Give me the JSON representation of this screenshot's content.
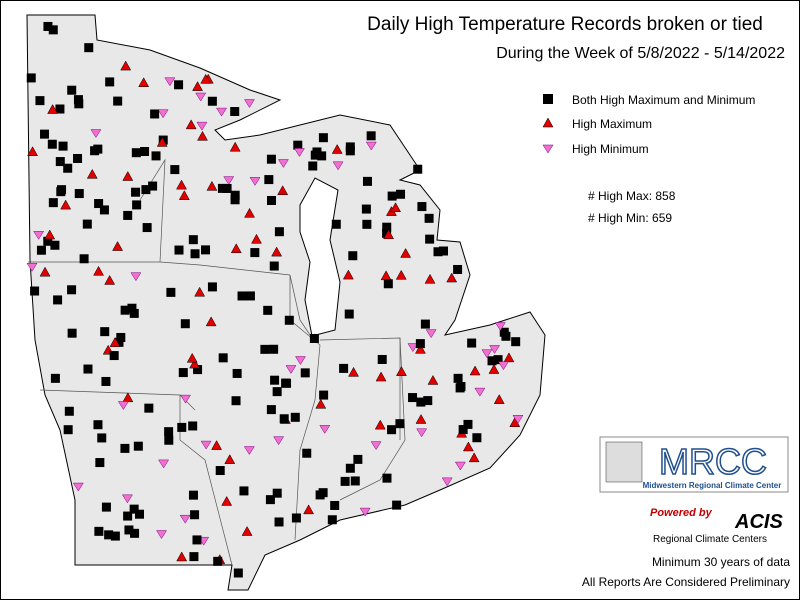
{
  "header": {
    "title": "Daily High Temperature Records broken or tied",
    "subtitle": "During the Week of 5/8/2022 - 5/14/2022"
  },
  "legend": [
    "Both High Maximum and Minimum",
    "High Maximum",
    "High Minimum"
  ],
  "counts": [
    "# High Max: 858",
    "# High Min: 659"
  ],
  "logos": {
    "mrcc": "MRCC",
    "mrcc_name": "Midwestern Regional Climate Center",
    "powered": "Powered by",
    "acis": "ACIS",
    "acis_name": "Regional Climate Centers"
  },
  "footer": [
    "Minimum 30 years of data",
    "All Reports Are Considered Preliminary"
  ]
}
